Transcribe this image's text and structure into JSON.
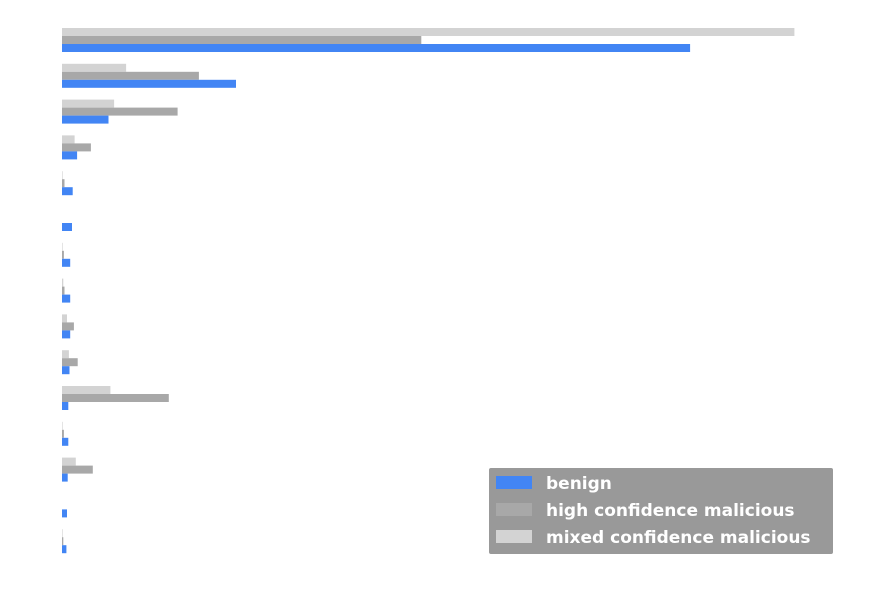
{
  "chart_data": {
    "type": "bar",
    "orientation": "horizontal",
    "categories": [
      "",
      "",
      "",
      "",
      "",
      "",
      "",
      "",
      "",
      "",
      "",
      "",
      "",
      "",
      ""
    ],
    "series": [
      {
        "name": "benign",
        "color": "#4285f4",
        "values": [
          100,
          27.7,
          7.4,
          2.4,
          1.7,
          1.6,
          1.3,
          1.3,
          1.3,
          1.2,
          1.0,
          1.0,
          0.9,
          0.8,
          0.7
        ]
      },
      {
        "name": "high confidence malicious",
        "color": "#a8a8a8",
        "values": [
          57.2,
          21.8,
          18.4,
          4.6,
          0.4,
          0,
          0.3,
          0.4,
          1.9,
          2.5,
          17.0,
          0.3,
          4.9,
          0,
          0.2
        ]
      },
      {
        "name": "mixed confidence malicious",
        "color": "#d3d3d3",
        "values": [
          116.6,
          10.2,
          8.3,
          2.0,
          0.1,
          0,
          0.1,
          0.2,
          0.8,
          1.1,
          7.7,
          0.1,
          2.2,
          0,
          0.1
        ]
      }
    ],
    "xlim": [
      0,
      121
    ],
    "xlabel": "",
    "ylabel": "",
    "grid": false,
    "legend": {
      "placement": "bottom-right",
      "entries": [
        "benign",
        "high confidence malicious",
        "mixed confidence malicious"
      ],
      "background": "#999999"
    }
  }
}
